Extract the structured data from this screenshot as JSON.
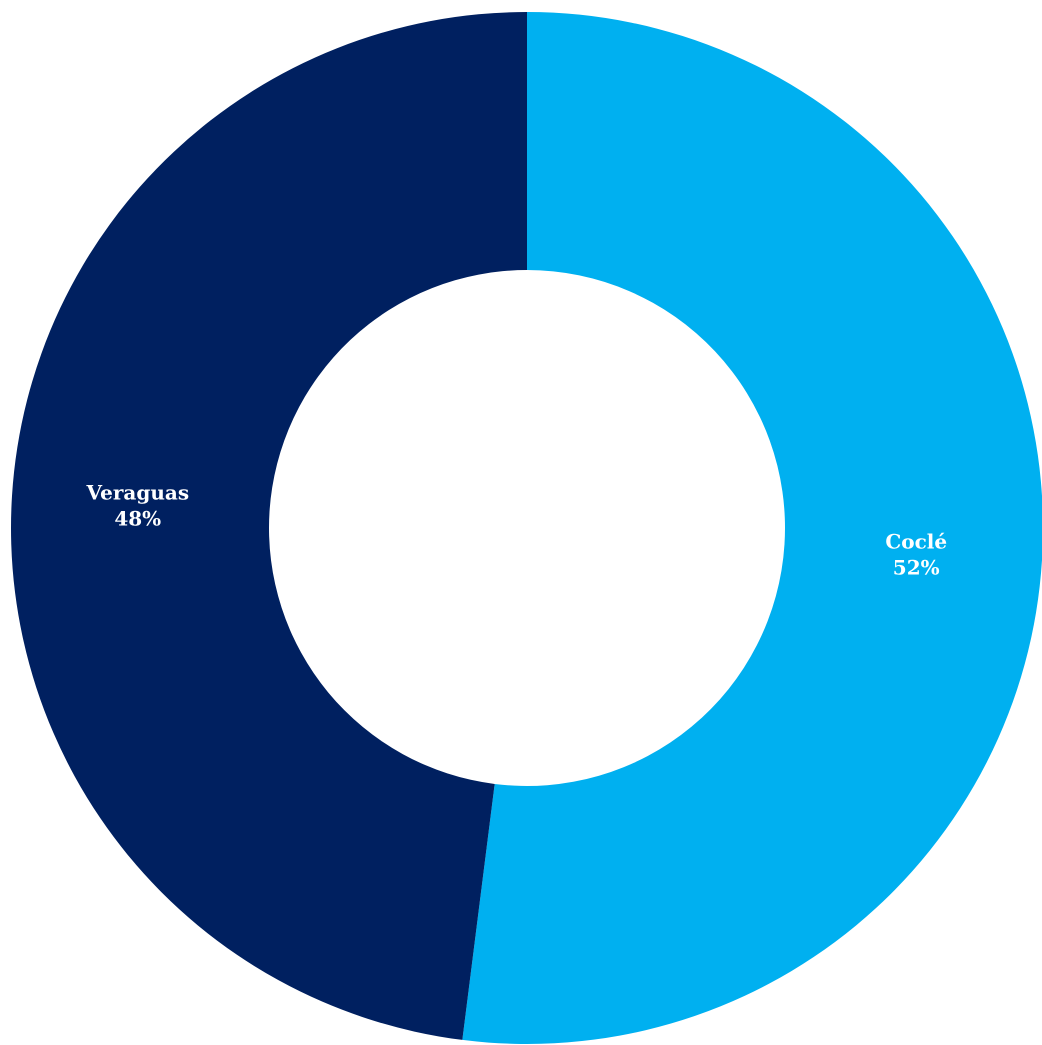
{
  "chart_data": {
    "type": "pie",
    "variant": "donut",
    "title": "",
    "categories": [
      "Coclé",
      "Veraguas"
    ],
    "values": [
      52,
      48
    ],
    "labels": [
      "52%",
      "48%"
    ],
    "colors": [
      "#00B0F0",
      "#002060"
    ],
    "legend": "none",
    "start": "top",
    "direction": "clockwise"
  }
}
